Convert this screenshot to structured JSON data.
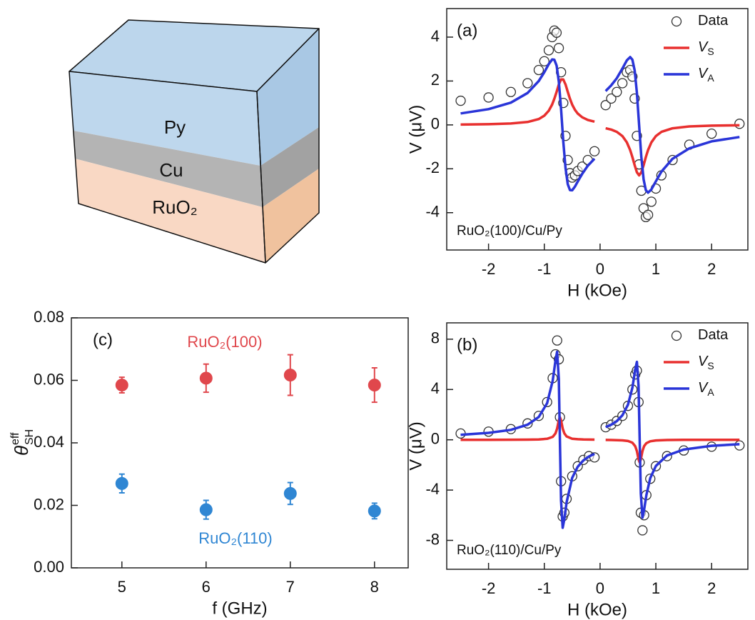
{
  "diagram": {
    "layers": [
      "Py",
      "Cu",
      "RuO₂"
    ]
  },
  "chart_data": [
    {
      "type": "line",
      "panel": "(a)",
      "annotation": "RuO₂(100)/Cu/Py",
      "xlabel": "H (kOe)",
      "ylabel": "V (μV)",
      "xlim": [
        -2.75,
        2.65
      ],
      "xticks": [
        -2,
        -1,
        0,
        1,
        2
      ],
      "ylim": [
        -5.7,
        5.3
      ],
      "yticks": [
        -4,
        -2,
        0,
        2,
        4
      ],
      "legend": "upper right",
      "x": [
        -2.5,
        -2.0,
        -1.6,
        -1.3,
        -1.1,
        -1.0,
        -0.92,
        -0.86,
        -0.82,
        -0.78,
        -0.74,
        -0.7,
        -0.66,
        -0.62,
        -0.58,
        -0.54,
        -0.5,
        -0.45,
        -0.4,
        -0.32,
        -0.22,
        -0.1,
        0,
        0.1,
        0.2,
        0.3,
        0.4,
        0.48,
        0.54,
        0.58,
        0.62,
        0.66,
        0.7,
        0.74,
        0.78,
        0.82,
        0.86,
        0.92,
        1.0,
        1.1,
        1.3,
        1.6,
        2.0,
        2.5
      ],
      "series": [
        {
          "name": "Data",
          "mode": "markers",
          "color": "#333333",
          "values": [
            1.1,
            1.25,
            1.5,
            1.9,
            2.5,
            2.9,
            3.4,
            4.0,
            4.3,
            4.2,
            3.5,
            2.4,
            1.0,
            -0.5,
            -1.6,
            -2.2,
            -2.4,
            -2.3,
            -2.1,
            -1.9,
            -1.6,
            -1.2,
            null,
            0.9,
            1.2,
            1.5,
            1.9,
            2.4,
            2.5,
            2.2,
            1.2,
            -0.5,
            -1.8,
            -3.0,
            -3.8,
            -4.2,
            -4.1,
            -3.5,
            -2.9,
            -2.3,
            -1.6,
            -0.9,
            -0.4,
            0.05
          ]
        },
        {
          "name": "V",
          "subscript": "S",
          "mode": "lines",
          "color": "#e8302f",
          "values": [
            0.016,
            0.03,
            0.062,
            0.131,
            0.266,
            0.42,
            0.646,
            0.927,
            1.19,
            1.51,
            1.84,
            2.07,
            2.07,
            1.84,
            1.51,
            1.19,
            0.927,
            0.685,
            0.517,
            0.346,
            0.227,
            0.149,
            null,
            -0.153,
            -0.214,
            -0.317,
            -0.509,
            -0.796,
            -1.15,
            -1.47,
            -1.84,
            -2.16,
            -2.3,
            -2.16,
            -1.84,
            -1.47,
            -1.15,
            -0.796,
            -0.509,
            -0.317,
            -0.153,
            -0.07,
            -0.034,
            -0.018
          ]
        },
        {
          "name": "V",
          "subscript": "A",
          "mode": "lines",
          "color": "#2a35d8",
          "values": [
            0.523,
            0.717,
            1.013,
            1.452,
            1.996,
            2.4,
            2.77,
            2.98,
            2.97,
            2.7,
            1.97,
            0.74,
            -0.74,
            -1.97,
            -2.7,
            -2.97,
            -2.98,
            -2.81,
            -2.58,
            -2.23,
            -1.86,
            -1.54,
            null,
            1.54,
            1.8,
            2.13,
            2.57,
            2.94,
            3.09,
            2.97,
            2.48,
            1.46,
            0,
            -1.46,
            -2.48,
            -2.97,
            -3.09,
            -2.94,
            -2.57,
            -2.13,
            -1.54,
            -1.07,
            -0.75,
            -0.55
          ]
        }
      ]
    },
    {
      "type": "line",
      "panel": "(b)",
      "annotation": "RuO₂(110)/Cu/Py",
      "xlabel": "H (kOe)",
      "ylabel": "V (μV)",
      "xlim": [
        -2.75,
        2.65
      ],
      "xticks": [
        -2,
        -1,
        0,
        1,
        2
      ],
      "ylim": [
        -10.3,
        9.3
      ],
      "yticks": [
        -8,
        -4,
        0,
        4,
        8
      ],
      "legend": "upper right",
      "x": [
        -2.5,
        -2.0,
        -1.6,
        -1.3,
        -1.1,
        -0.95,
        -0.85,
        -0.8,
        -0.77,
        -0.74,
        -0.72,
        -0.7,
        -0.67,
        -0.64,
        -0.6,
        -0.5,
        -0.4,
        -0.3,
        -0.2,
        -0.1,
        0,
        0.1,
        0.2,
        0.3,
        0.4,
        0.5,
        0.58,
        0.63,
        0.66,
        0.69,
        0.71,
        0.73,
        0.76,
        0.79,
        0.83,
        0.9,
        1.0,
        1.2,
        1.5,
        2.0,
        2.5
      ],
      "series": [
        {
          "name": "Data",
          "mode": "markers",
          "color": "#333333",
          "values": [
            0.5,
            0.65,
            0.85,
            1.3,
            1.9,
            3.0,
            4.9,
            6.8,
            7.9,
            6.4,
            1.8,
            -3.3,
            -6.1,
            -5.8,
            -4.7,
            -2.9,
            -2.1,
            -1.6,
            -1.3,
            -1.4,
            null,
            1.0,
            1.2,
            1.5,
            1.9,
            2.7,
            4.0,
            5.2,
            5.5,
            3.0,
            -1.8,
            -5.8,
            -7.2,
            -6.0,
            -4.4,
            -3.1,
            -2.1,
            -1.3,
            -0.85,
            -0.55,
            -0.45
          ]
        },
        {
          "name": "V",
          "subscript": "S",
          "mode": "lines",
          "color": "#e8302f",
          "values": [
            0.0014,
            0.0027,
            0.0058,
            0.0133,
            0.031,
            0.081,
            0.232,
            0.506,
            0.9,
            1.55,
            1.8,
            1.55,
            0.9,
            0.506,
            0.266,
            0.088,
            0.043,
            0.025,
            0.016,
            0.012,
            null,
            -0.012,
            -0.017,
            -0.026,
            -0.046,
            -0.097,
            -0.232,
            -0.506,
            -0.9,
            -1.55,
            -1.8,
            -1.55,
            -0.9,
            -0.506,
            -0.266,
            -0.117,
            -0.052,
            -0.019,
            -0.007,
            -0.003,
            -0.001
          ]
        },
        {
          "name": "V",
          "subscript": "A",
          "mode": "lines",
          "color": "#2a35d8",
          "values": [
            0.39,
            0.55,
            0.79,
            1.2,
            1.81,
            2.91,
            4.69,
            6.29,
            7.0,
            4.83,
            0,
            -4.83,
            -7.0,
            -6.29,
            -4.97,
            -3.03,
            -2.14,
            -1.64,
            -1.33,
            -1.12,
            null,
            1.01,
            1.2,
            1.49,
            1.95,
            2.79,
            4.15,
            5.57,
            6.2,
            4.28,
            0,
            -4.28,
            -6.2,
            -5.57,
            -4.4,
            -3.05,
            -2.08,
            -1.25,
            -0.78,
            -0.48,
            -0.35
          ]
        }
      ]
    },
    {
      "type": "scatter",
      "panel": "(c)",
      "xlabel": "f (GHz)",
      "ylabel": {
        "symbol": "θ",
        "sup": "eff",
        "sub": "SH"
      },
      "xlim": [
        4.4,
        8.4
      ],
      "xticks": [
        5,
        6,
        7,
        8
      ],
      "ylim": [
        0,
        0.08
      ],
      "yticks": [
        {
          "value": 0,
          "label": "0.00"
        },
        {
          "value": 0.02,
          "label": "0.02"
        },
        {
          "value": 0.04,
          "label": "0.04"
        },
        {
          "value": 0.06,
          "label": "0.06"
        },
        {
          "value": 0.08,
          "label": "0.08"
        }
      ],
      "x": [
        5,
        6,
        7,
        8
      ],
      "series": [
        {
          "name": "RuO₂(100)",
          "color": "#e0474c",
          "values": [
            0.0585,
            0.0607,
            0.0617,
            0.0585
          ],
          "errors": [
            0.0025,
            0.0045,
            0.0065,
            0.0055
          ]
        },
        {
          "name": "RuO₂(110)",
          "color": "#2f86d3",
          "values": [
            0.027,
            0.0186,
            0.0238,
            0.0182
          ],
          "errors": [
            0.003,
            0.003,
            0.0035,
            0.0025
          ]
        }
      ]
    }
  ]
}
